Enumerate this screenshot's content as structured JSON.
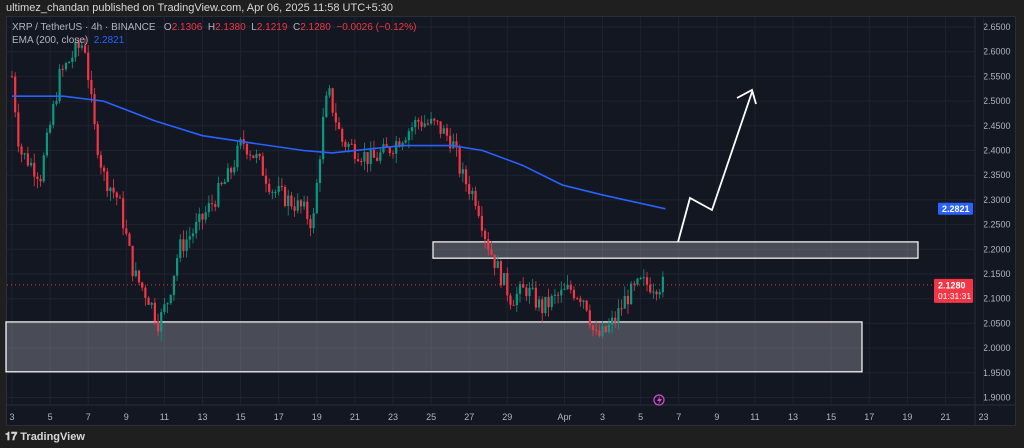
{
  "header": {
    "published": "ultimez_chandan published on TradingView.com, Apr 06, 2025 11:58 UTC+5:30"
  },
  "legend": {
    "symbol": "XRP / TetherUS · 4h · BINANCE",
    "o_label": "O",
    "o": "2.1306",
    "h_label": "H",
    "h": "2.1380",
    "l_label": "L",
    "l": "2.1219",
    "c_label": "C",
    "c": "2.1280",
    "change": "−0.0026 (−0.12%)",
    "ema_label": "EMA (200, close)",
    "ema_value": "2.2821"
  },
  "footer": {
    "brand": "TradingView"
  },
  "colors": {
    "up": "#089981",
    "down": "#f23645",
    "ema": "#2962ff",
    "bg": "#131722"
  },
  "price_badge": {
    "price": "2.1280",
    "countdown": "01:31:31"
  },
  "ema_badge": "2.2821",
  "chart_data": {
    "type": "candlestick",
    "title": "XRP / TetherUS · 4h · BINANCE",
    "ylim": [
      1.88,
      2.67
    ],
    "y_ticks": [
      "2.6500",
      "2.6000",
      "2.5500",
      "2.5000",
      "2.4500",
      "2.4000",
      "2.3500",
      "2.3000",
      "2.2500",
      "2.2000",
      "2.1500",
      "2.1000",
      "2.0500",
      "2.0000",
      "1.9500",
      "1.9000"
    ],
    "x_ticks": [
      "3",
      "5",
      "7",
      "9",
      "11",
      "13",
      "15",
      "17",
      "19",
      "21",
      "23",
      "25",
      "27",
      "29",
      "Apr",
      "3",
      "5",
      "7",
      "9",
      "11",
      "13",
      "15",
      "17",
      "19",
      "21",
      "23"
    ],
    "x_tick_days": [
      0,
      2,
      4,
      6,
      8,
      10,
      12,
      14,
      16,
      18,
      20,
      22,
      24,
      26,
      29,
      31,
      33,
      35,
      37,
      39,
      41,
      43,
      45,
      47,
      49,
      51
    ],
    "close_path_day_price": [
      [
        0,
        2.55
      ],
      [
        0.4,
        2.4
      ],
      [
        1.5,
        2.35
      ],
      [
        2,
        2.45
      ],
      [
        2.5,
        2.55
      ],
      [
        3.3,
        2.6
      ],
      [
        3.8,
        2.62
      ],
      [
        4.3,
        2.45
      ],
      [
        4.8,
        2.35
      ],
      [
        5.6,
        2.3
      ],
      [
        6.4,
        2.15
      ],
      [
        7.2,
        2.1
      ],
      [
        7.7,
        2.05
      ],
      [
        8.2,
        2.1
      ],
      [
        8.75,
        2.2
      ],
      [
        9.8,
        2.25
      ],
      [
        10.6,
        2.3
      ],
      [
        11.4,
        2.35
      ],
      [
        12.1,
        2.42
      ],
      [
        12.9,
        2.38
      ],
      [
        13.7,
        2.32
      ],
      [
        14.5,
        2.3
      ],
      [
        15.3,
        2.28
      ],
      [
        15.8,
        2.25
      ],
      [
        16.3,
        2.45
      ],
      [
        16.6,
        2.52
      ],
      [
        17.3,
        2.42
      ],
      [
        18.1,
        2.4
      ],
      [
        18.9,
        2.38
      ],
      [
        19.7,
        2.4
      ],
      [
        20.5,
        2.43
      ],
      [
        21.3,
        2.46
      ],
      [
        22.3,
        2.45
      ],
      [
        23.1,
        2.42
      ],
      [
        23.6,
        2.35
      ],
      [
        24.4,
        2.3
      ],
      [
        24.9,
        2.22
      ],
      [
        25.4,
        2.17
      ],
      [
        26.2,
        2.1
      ],
      [
        27,
        2.12
      ],
      [
        27.8,
        2.08
      ],
      [
        28.5,
        2.1
      ],
      [
        29.3,
        2.12
      ],
      [
        30.1,
        2.1
      ],
      [
        30.6,
        2.02
      ],
      [
        31.1,
        2.03
      ],
      [
        31.7,
        2.06
      ],
      [
        32.2,
        2.1
      ],
      [
        33,
        2.13
      ],
      [
        34.3,
        2.128
      ]
    ],
    "ema200_day_price": [
      [
        0,
        2.51
      ],
      [
        2.7,
        2.51
      ],
      [
        4.8,
        2.5
      ],
      [
        7.5,
        2.46
      ],
      [
        10,
        2.43
      ],
      [
        12.6,
        2.415
      ],
      [
        15.3,
        2.4
      ],
      [
        16.8,
        2.395
      ],
      [
        20.5,
        2.41
      ],
      [
        23.1,
        2.41
      ],
      [
        24.7,
        2.4
      ],
      [
        26.8,
        2.37
      ],
      [
        28.9,
        2.33
      ],
      [
        31,
        2.31
      ],
      [
        34.3,
        2.282
      ]
    ],
    "zones": [
      {
        "name": "resistance",
        "from": 2.182,
        "to": 2.215
      },
      {
        "name": "support",
        "from": 1.952,
        "to": 2.053
      }
    ],
    "last_price": 2.128
  }
}
